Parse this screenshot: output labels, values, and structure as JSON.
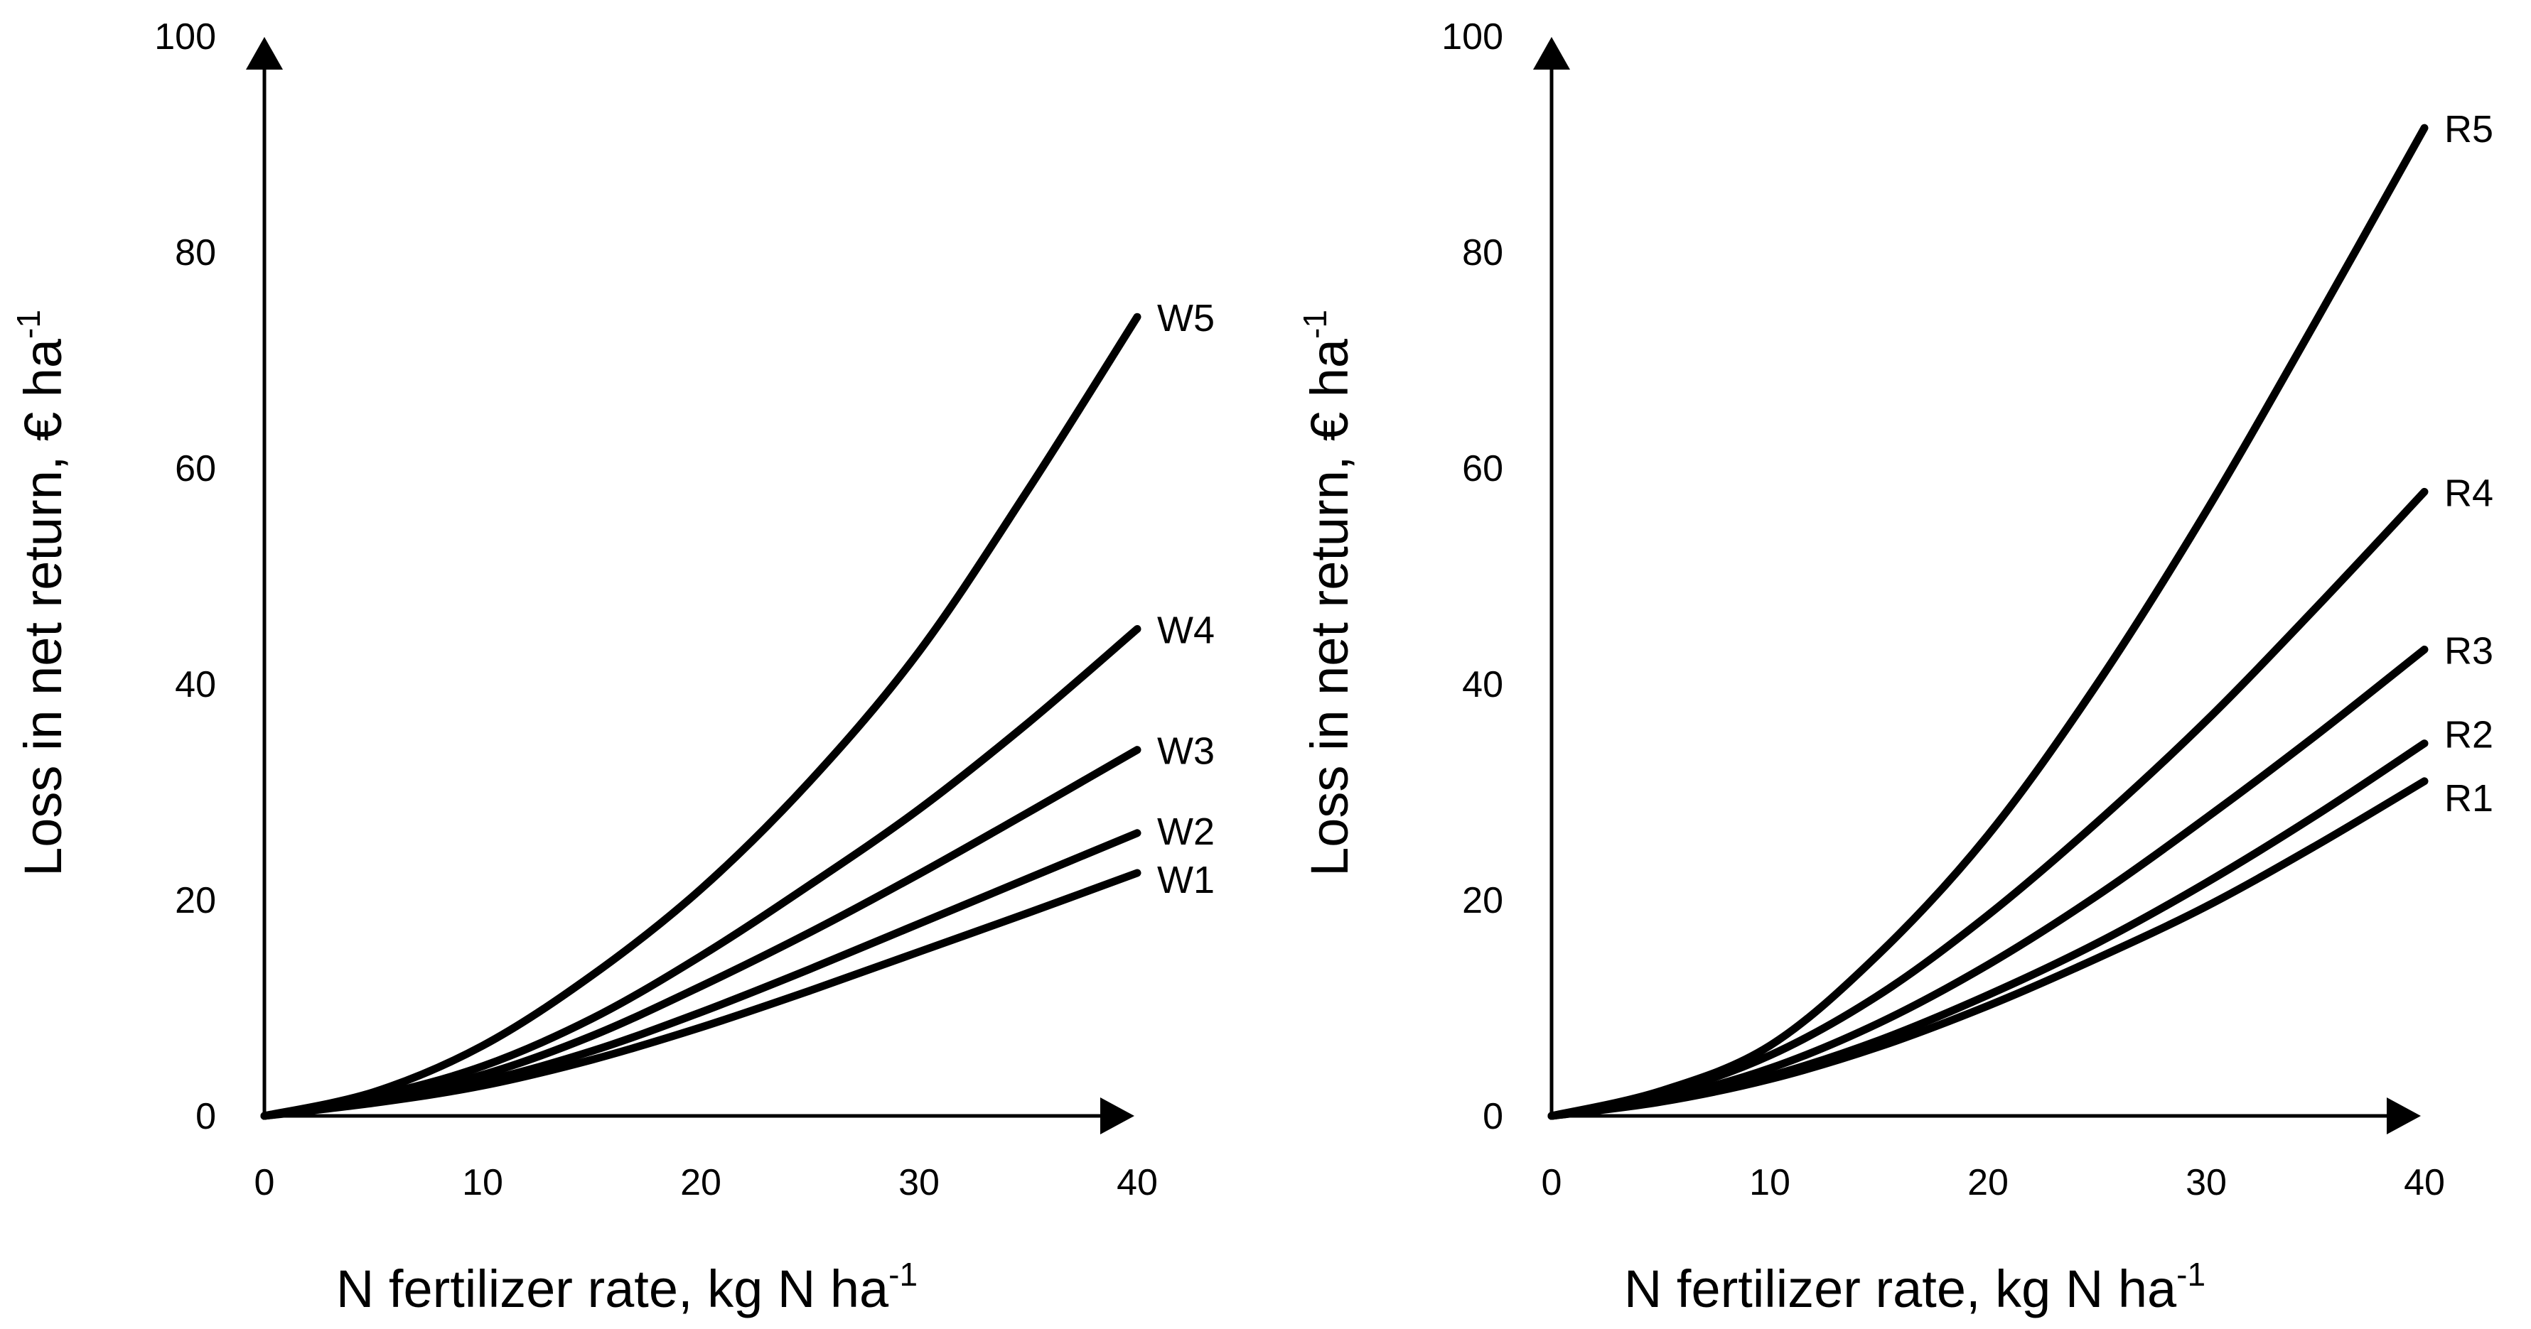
{
  "chart_data": [
    {
      "type": "line",
      "title": "",
      "xlabel": "N fertilizer rate, kg N ha",
      "xlabel_sup": "-1",
      "ylabel": "Loss in net return, € ha",
      "ylabel_sup": "-1",
      "xlim": [
        0,
        40
      ],
      "ylim": [
        0,
        100
      ],
      "xticks": [
        0,
        10,
        20,
        30,
        40
      ],
      "yticks": [
        0,
        20,
        40,
        60,
        80,
        100
      ],
      "x": [
        0,
        5,
        10,
        15,
        20,
        25,
        30,
        35,
        40
      ],
      "series": [
        {
          "name": "W1",
          "values": [
            0,
            1.2,
            2.8,
            5.2,
            8.2,
            11.6,
            15.2,
            18.8,
            22.5
          ]
        },
        {
          "name": "W2",
          "values": [
            0,
            1.3,
            3.2,
            6.0,
            9.6,
            13.6,
            17.8,
            22.0,
            26.2
          ]
        },
        {
          "name": "W3",
          "values": [
            0,
            1.5,
            3.8,
            7.4,
            12.0,
            17.0,
            22.4,
            28.1,
            33.9
          ]
        },
        {
          "name": "W4",
          "values": [
            0,
            1.8,
            4.6,
            9.0,
            14.8,
            21.4,
            28.4,
            36.4,
            45.1
          ]
        },
        {
          "name": "W5",
          "values": [
            0,
            2.2,
            6.5,
            13.0,
            21.0,
            31.0,
            43.0,
            58.0,
            74.0
          ]
        }
      ]
    },
    {
      "type": "line",
      "title": "",
      "xlabel": "N fertilizer rate, kg N ha",
      "xlabel_sup": "-1",
      "ylabel": "Loss in net return, € ha",
      "ylabel_sup": "-1",
      "xlim": [
        0,
        40
      ],
      "ylim": [
        0,
        100
      ],
      "xticks": [
        0,
        10,
        20,
        30,
        40
      ],
      "yticks": [
        0,
        20,
        40,
        60,
        80,
        100
      ],
      "x": [
        0,
        5,
        10,
        15,
        20,
        25,
        30,
        35,
        40
      ],
      "series": [
        {
          "name": "R1",
          "values": [
            0,
            1.3,
            3.4,
            6.4,
            10.2,
            14.6,
            19.4,
            25.0,
            31.0
          ]
        },
        {
          "name": "R2",
          "values": [
            0,
            1.4,
            3.7,
            7.0,
            11.2,
            16.0,
            21.6,
            27.8,
            34.5
          ]
        },
        {
          "name": "R3",
          "values": [
            0,
            1.6,
            4.4,
            8.6,
            14.0,
            20.4,
            27.6,
            35.2,
            43.2
          ]
        },
        {
          "name": "R4",
          "values": [
            0,
            2.0,
            5.6,
            11.2,
            18.6,
            27.2,
            36.6,
            47.0,
            57.8
          ]
        },
        {
          "name": "R5",
          "values": [
            0,
            2.3,
            6.5,
            15.0,
            26.0,
            40.0,
            56.0,
            73.5,
            91.5
          ]
        }
      ]
    }
  ]
}
